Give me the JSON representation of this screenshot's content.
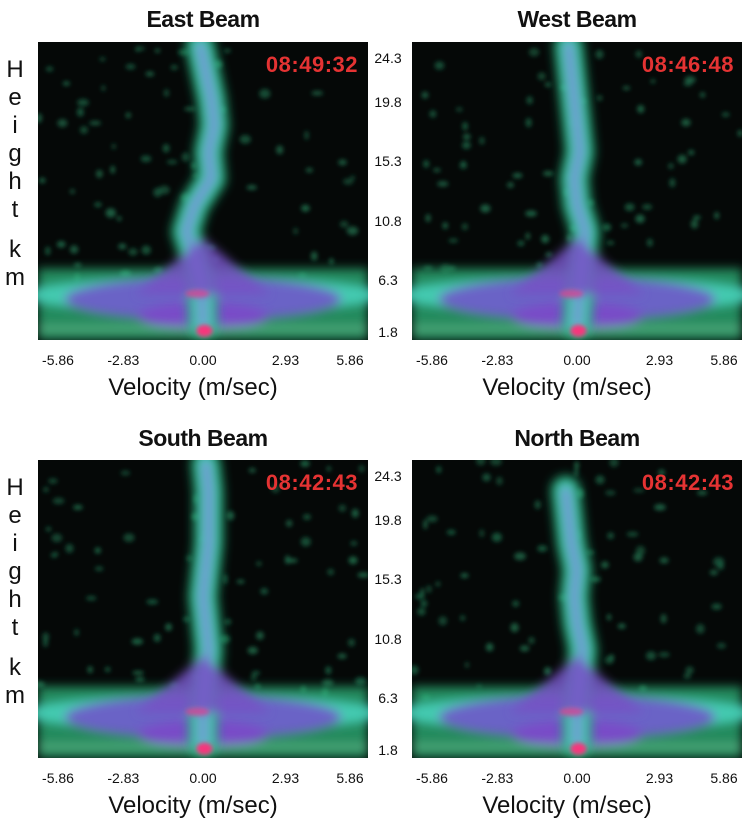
{
  "chart_data": [
    {
      "type": "heatmap",
      "title": "East Beam",
      "timestamp": "08:49:32",
      "xlabel": "Velocity (m/sec)",
      "ylabel": "Height km",
      "x_ticks": [
        "-5.86",
        "-2.83",
        "0.00",
        "2.93",
        "5.86"
      ],
      "y_ticks": [
        "24.3",
        "19.8",
        "15.3",
        "10.8",
        "6.3",
        "1.8"
      ],
      "xlim": [
        -5.86,
        5.86
      ],
      "ylim": [
        1.8,
        24.3
      ],
      "plume": [
        [
          0.0,
          3
        ],
        [
          -0.05,
          6
        ],
        [
          -0.3,
          8
        ],
        [
          -0.6,
          10
        ],
        [
          -0.3,
          12
        ],
        [
          0.3,
          14
        ],
        [
          0.2,
          16
        ],
        [
          0.4,
          18
        ],
        [
          0.3,
          20
        ],
        [
          0.1,
          22
        ],
        [
          -0.1,
          24
        ]
      ]
    },
    {
      "type": "heatmap",
      "title": "West Beam",
      "timestamp": "08:46:48",
      "xlabel": "Velocity (m/sec)",
      "ylabel": "",
      "x_ticks": [
        "-5.86",
        "-2.83",
        "0.00",
        "2.93",
        "5.86"
      ],
      "xlim": [
        -5.86,
        5.86
      ],
      "ylim": [
        1.8,
        24.3
      ],
      "plume": [
        [
          0.0,
          3
        ],
        [
          0.1,
          6
        ],
        [
          0.2,
          8
        ],
        [
          0.3,
          10
        ],
        [
          0.0,
          12
        ],
        [
          -0.1,
          14
        ],
        [
          0.1,
          16
        ],
        [
          0.0,
          18
        ],
        [
          -0.1,
          20
        ],
        [
          -0.2,
          22
        ],
        [
          -0.3,
          24
        ]
      ]
    },
    {
      "type": "heatmap",
      "title": "South Beam",
      "timestamp": "08:42:43",
      "xlabel": "Velocity (m/sec)",
      "ylabel": "Height km",
      "x_ticks": [
        "-5.86",
        "-2.83",
        "0.00",
        "2.93",
        "5.86"
      ],
      "y_ticks": [
        "24.3",
        "19.8",
        "15.3",
        "10.8",
        "6.3",
        "1.8"
      ],
      "xlim": [
        -5.86,
        5.86
      ],
      "ylim": [
        1.8,
        24.3
      ],
      "plume": [
        [
          0.0,
          3
        ],
        [
          0.0,
          6
        ],
        [
          0.1,
          8
        ],
        [
          0.2,
          10
        ],
        [
          0.1,
          12
        ],
        [
          0.0,
          14
        ],
        [
          0.1,
          16
        ],
        [
          0.2,
          18
        ],
        [
          0.2,
          20
        ],
        [
          0.2,
          22
        ],
        [
          0.1,
          24
        ]
      ]
    },
    {
      "type": "heatmap",
      "title": "North Beam",
      "timestamp": "08:42:43",
      "xlabel": "Velocity (m/sec)",
      "ylabel": "",
      "x_ticks": [
        "-5.86",
        "-2.83",
        "0.00",
        "2.93",
        "5.86"
      ],
      "xlim": [
        -5.86,
        5.86
      ],
      "ylim": [
        1.8,
        24.3
      ],
      "plume": [
        [
          0.0,
          3
        ],
        [
          0.0,
          6
        ],
        [
          0.1,
          8
        ],
        [
          0.2,
          10
        ],
        [
          0.0,
          12
        ],
        [
          -0.1,
          14
        ],
        [
          0.0,
          16
        ],
        [
          -0.2,
          18
        ],
        [
          -0.3,
          20
        ],
        [
          -0.4,
          22
        ]
      ]
    }
  ]
}
